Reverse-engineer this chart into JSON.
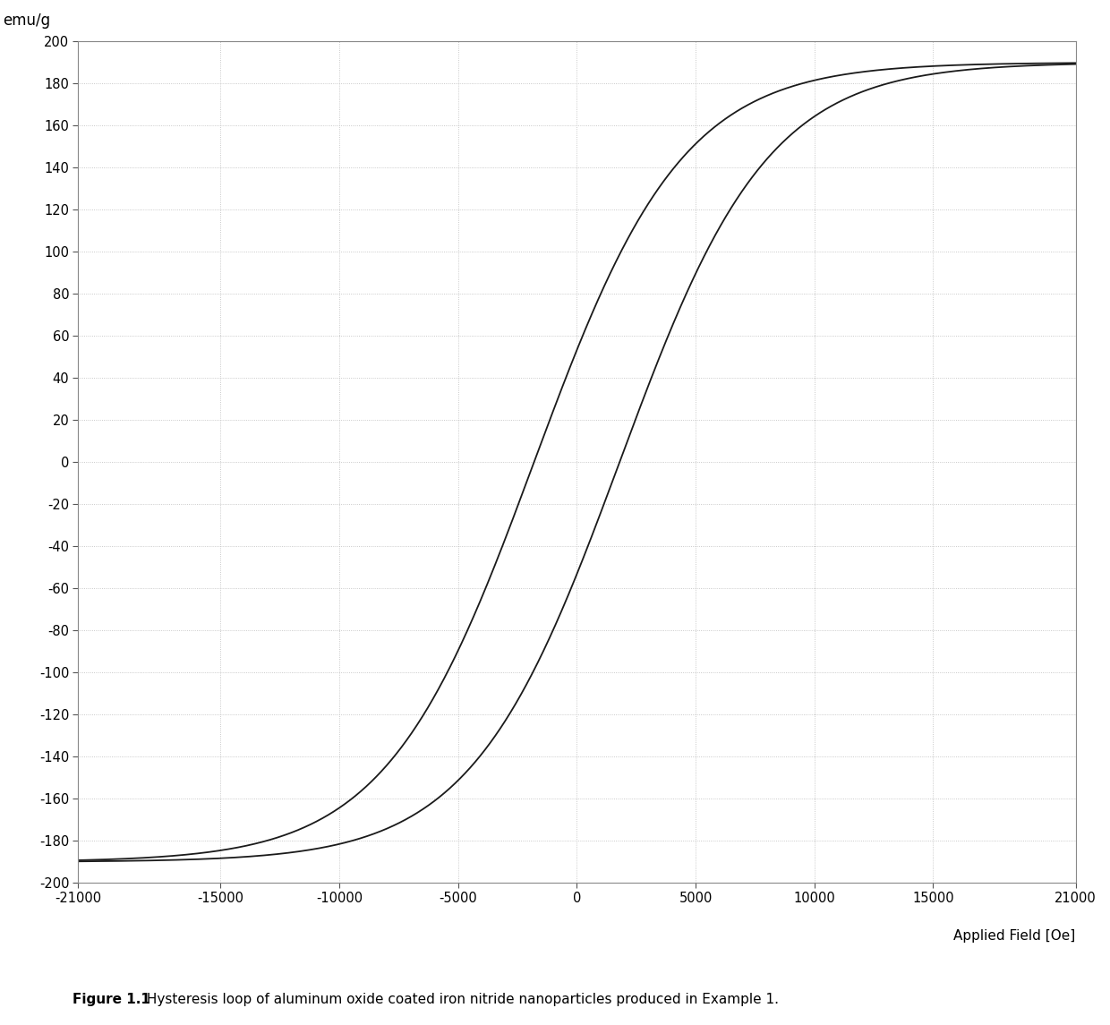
{
  "xlabel": "Applied Field [Oe]",
  "ylabel": "emu/g",
  "xlim": [
    -21000,
    21000
  ],
  "ylim": [
    -200,
    200
  ],
  "xticks": [
    -21000,
    -15000,
    -10000,
    -5000,
    0,
    5000,
    10000,
    15000,
    21000
  ],
  "yticks": [
    -200,
    -180,
    -160,
    -140,
    -120,
    -100,
    -80,
    -60,
    -40,
    -20,
    0,
    20,
    40,
    60,
    80,
    100,
    120,
    140,
    160,
    180,
    200
  ],
  "line_color": "#1a1a1a",
  "line_width": 1.3,
  "grid_color": "#bbbbbb",
  "background_color": "#ffffff",
  "caption_bold": "Figure 1.1",
  "caption_normal": " Hysteresis loop of aluminum oxide coated iron nitride nanoparticles produced in Example 1.",
  "saturation_mag": 190,
  "coercivity": 1800,
  "k_shape": 0.00016,
  "Ms_approach": 195
}
